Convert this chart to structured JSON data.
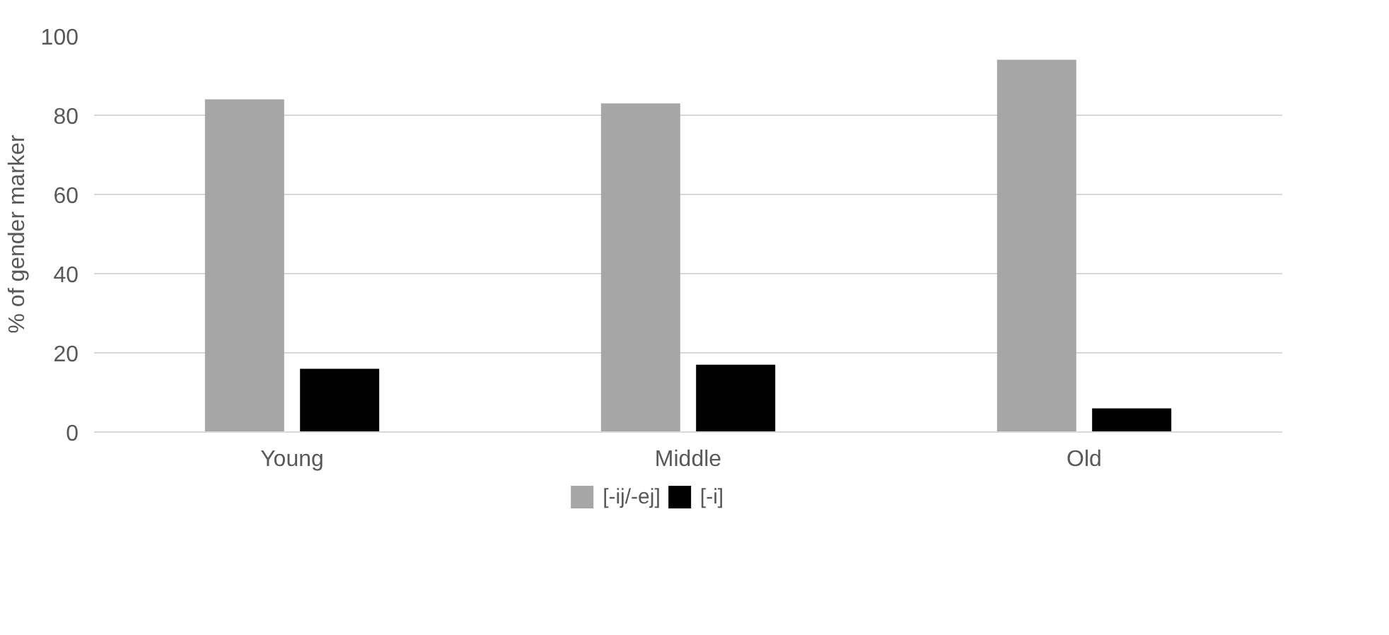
{
  "chart_data": {
    "type": "bar",
    "ylabel": "% of gender marker",
    "categories": [
      "Young",
      "Middle",
      "Old"
    ],
    "series": [
      {
        "name": "[-ij/-ej]",
        "color": "#a6a6a6",
        "values": [
          84,
          83,
          94
        ]
      },
      {
        "name": "[-i]",
        "color": "#000000",
        "values": [
          16,
          17,
          6
        ]
      }
    ],
    "ylim": [
      0,
      100
    ],
    "yticks": [
      0,
      20,
      40,
      60,
      80,
      100
    ],
    "grid": "y",
    "legend": "bottom"
  }
}
